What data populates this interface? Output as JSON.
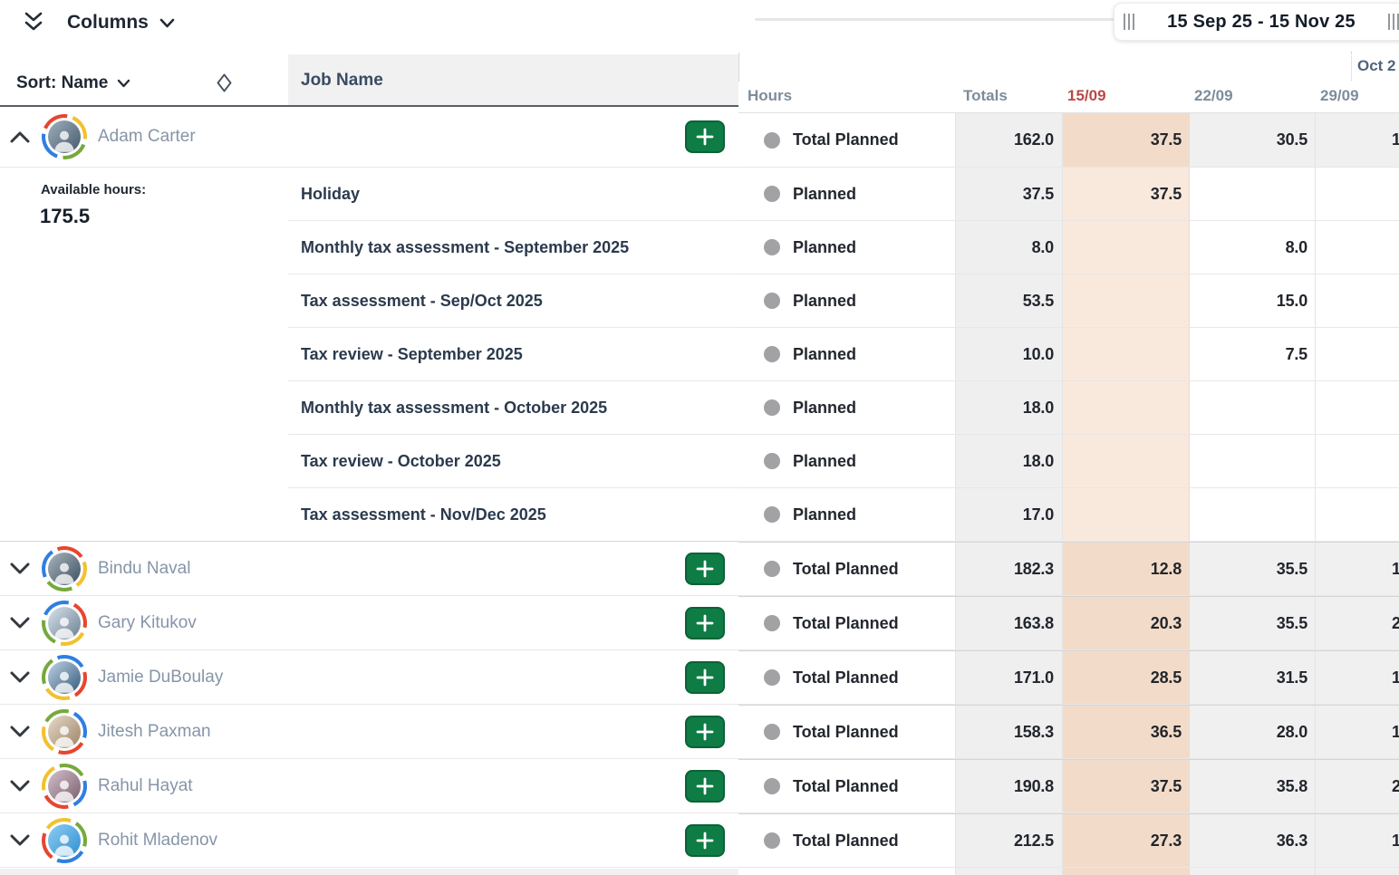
{
  "left_panel": {
    "collapse_all_icon": "double-chevron-down-icon",
    "columns_button_label": "Columns",
    "sort_button_label": "Sort: Name",
    "sort_toggle_icon": "diamond-sort-icon",
    "job_name_header": "Job Name",
    "available_hours_label": "Available hours:",
    "people": [
      {
        "name": "Adam Carter",
        "expanded": true,
        "available_hours": "175.5",
        "jobs": [
          "Holiday",
          "Monthly tax assessment - September 2025",
          "Tax assessment - Sep/Oct 2025",
          "Tax review - September 2025",
          "Monthly tax assessment - October 2025",
          "Tax review - October 2025",
          "Tax assessment - Nov/Dec 2025"
        ]
      },
      {
        "name": "Bindu Naval",
        "expanded": false
      },
      {
        "name": "Gary Kitukov",
        "expanded": false
      },
      {
        "name": "Jamie DuBoulay",
        "expanded": false
      },
      {
        "name": "Jitesh Paxman",
        "expanded": false
      },
      {
        "name": "Rahul Hayat",
        "expanded": false
      },
      {
        "name": "Rohit Mladenov",
        "expanded": false
      }
    ]
  },
  "timeline": {
    "range_label": "15 Sep 25 - 15 Nov 25",
    "partial_month_label": "Oct 2",
    "header": {
      "hours": "Hours",
      "totals": "Totals",
      "weeks": [
        "15/09",
        "22/09",
        "29/09"
      ],
      "current_week": "15/09"
    }
  },
  "grid_rows": [
    {
      "label": "Total Planned",
      "kind": "total",
      "totals": "162.0",
      "week1": "37.5",
      "week2": "30.5",
      "week3_fragment": "1"
    },
    {
      "label": "Planned",
      "kind": "planned",
      "totals": "37.5",
      "week1": "37.5",
      "week2": "",
      "week3_fragment": ""
    },
    {
      "label": "Planned",
      "kind": "planned",
      "totals": "8.0",
      "week1": "",
      "week2": "8.0",
      "week3_fragment": ""
    },
    {
      "label": "Planned",
      "kind": "planned",
      "totals": "53.5",
      "week1": "",
      "week2": "15.0",
      "week3_fragment": ""
    },
    {
      "label": "Planned",
      "kind": "planned",
      "totals": "10.0",
      "week1": "",
      "week2": "7.5",
      "week3_fragment": ""
    },
    {
      "label": "Planned",
      "kind": "planned",
      "totals": "18.0",
      "week1": "",
      "week2": "",
      "week3_fragment": ""
    },
    {
      "label": "Planned",
      "kind": "planned",
      "totals": "18.0",
      "week1": "",
      "week2": "",
      "week3_fragment": ""
    },
    {
      "label": "Planned",
      "kind": "planned",
      "totals": "17.0",
      "week1": "",
      "week2": "",
      "week3_fragment": ""
    },
    {
      "label": "Total Planned",
      "kind": "total",
      "totals": "182.3",
      "week1": "12.8",
      "week2": "35.5",
      "week3_fragment": "1"
    },
    {
      "label": "Total Planned",
      "kind": "total",
      "totals": "163.8",
      "week1": "20.3",
      "week2": "35.5",
      "week3_fragment": "2"
    },
    {
      "label": "Total Planned",
      "kind": "total",
      "totals": "171.0",
      "week1": "28.5",
      "week2": "31.5",
      "week3_fragment": "1"
    },
    {
      "label": "Total Planned",
      "kind": "total",
      "totals": "158.3",
      "week1": "36.5",
      "week2": "28.0",
      "week3_fragment": "1"
    },
    {
      "label": "Total Planned",
      "kind": "total",
      "totals": "190.8",
      "week1": "37.5",
      "week2": "35.8",
      "week3_fragment": "2"
    },
    {
      "label": "Total Planned",
      "kind": "total",
      "totals": "212.5",
      "week1": "27.3",
      "week2": "36.3",
      "week3_fragment": "1"
    }
  ],
  "colors": {
    "accent_green": "#0e7c44",
    "current_week_red": "#b84a47",
    "week_highlight_bg": "#f9e9dc",
    "week_highlight_total_bg": "#f2dcc9",
    "totals_column_bg": "#efeff0",
    "header_text": "#7e8c9a",
    "person_name_text": "#8695a8"
  }
}
